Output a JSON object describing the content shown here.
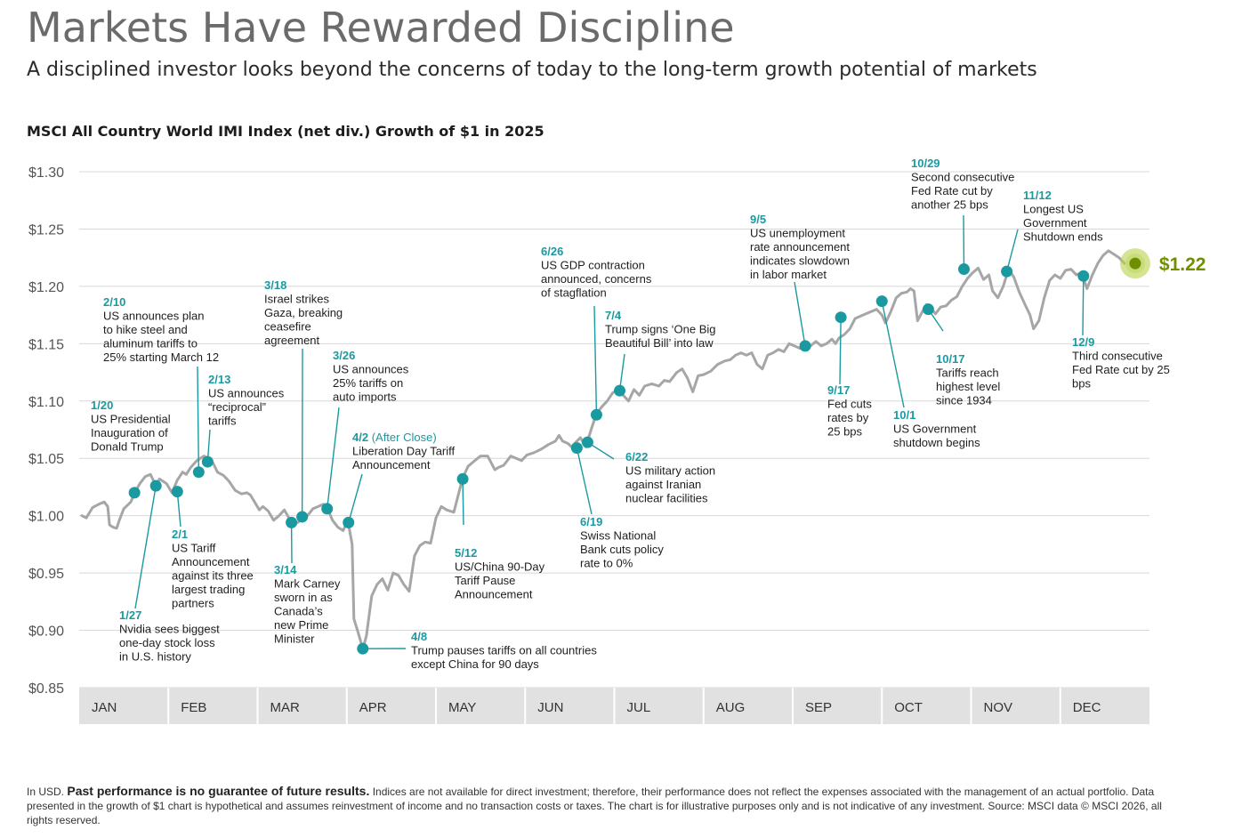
{
  "header": {
    "title": "Markets Have Rewarded Discipline",
    "subtitle": "A disciplined investor looks beyond the concerns of today to the long-term growth potential of markets"
  },
  "chart_data": {
    "type": "line",
    "title": "MSCI All Country World IMI Index (net div.) Growth of $1 in 2025",
    "ylim": [
      0.85,
      1.3
    ],
    "y_ticks": [
      0.85,
      0.9,
      0.95,
      1.0,
      1.05,
      1.1,
      1.15,
      1.2,
      1.25,
      1.3
    ],
    "y_tick_labels": [
      "$0.85",
      "$0.90",
      "$0.95",
      "$1.00",
      "$1.05",
      "$1.10",
      "$1.15",
      "$1.20",
      "$1.25",
      "$1.30"
    ],
    "months": [
      "JAN",
      "FEB",
      "MAR",
      "APR",
      "MAY",
      "JUN",
      "JUL",
      "AUG",
      "SEP",
      "OCT",
      "NOV",
      "DEC"
    ],
    "x_unit": "month (0 = Jan 1, 12 = Dec 31)",
    "series": [
      {
        "name": "Growth of $1",
        "color": "#a6a6a6",
        "points": [
          [
            0.03,
            1.0
          ],
          [
            0.08,
            0.998
          ],
          [
            0.15,
            1.007
          ],
          [
            0.22,
            1.01
          ],
          [
            0.28,
            1.012
          ],
          [
            0.32,
            1.008
          ],
          [
            0.34,
            0.992
          ],
          [
            0.38,
            0.99
          ],
          [
            0.42,
            0.989
          ],
          [
            0.45,
            0.996
          ],
          [
            0.5,
            1.006
          ],
          [
            0.58,
            1.012
          ],
          [
            0.62,
            1.02
          ],
          [
            0.68,
            1.028
          ],
          [
            0.74,
            1.034
          ],
          [
            0.8,
            1.036
          ],
          [
            0.86,
            1.026
          ],
          [
            0.9,
            1.032
          ],
          [
            0.98,
            1.028
          ],
          [
            1.04,
            1.02
          ],
          [
            1.1,
            1.031
          ],
          [
            1.16,
            1.038
          ],
          [
            1.2,
            1.036
          ],
          [
            1.25,
            1.042
          ],
          [
            1.32,
            1.048
          ],
          [
            1.4,
            1.052
          ],
          [
            1.45,
            1.05
          ],
          [
            1.5,
            1.046
          ],
          [
            1.55,
            1.038
          ],
          [
            1.62,
            1.035
          ],
          [
            1.68,
            1.03
          ],
          [
            1.75,
            1.022
          ],
          [
            1.82,
            1.019
          ],
          [
            1.88,
            1.02
          ],
          [
            1.92,
            1.018
          ],
          [
            2.02,
            1.005
          ],
          [
            2.06,
            1.008
          ],
          [
            2.12,
            1.004
          ],
          [
            2.18,
            0.996
          ],
          [
            2.24,
            1.0
          ],
          [
            2.3,
            1.005
          ],
          [
            2.38,
            0.994
          ],
          [
            2.45,
            0.994
          ],
          [
            2.5,
            0.997
          ],
          [
            2.56,
            1.0
          ],
          [
            2.62,
            1.006
          ],
          [
            2.68,
            1.008
          ],
          [
            2.74,
            1.01
          ],
          [
            2.78,
            1.007
          ],
          [
            2.84,
            0.996
          ],
          [
            2.9,
            0.99
          ],
          [
            2.96,
            0.987
          ],
          [
            3.0,
            0.994
          ],
          [
            3.02,
            0.992
          ],
          [
            3.06,
            0.975
          ],
          [
            3.08,
            0.91
          ],
          [
            3.12,
            0.9
          ],
          [
            3.18,
            0.884
          ],
          [
            3.22,
            0.895
          ],
          [
            3.28,
            0.93
          ],
          [
            3.34,
            0.94
          ],
          [
            3.4,
            0.945
          ],
          [
            3.46,
            0.935
          ],
          [
            3.52,
            0.95
          ],
          [
            3.58,
            0.948
          ],
          [
            3.64,
            0.94
          ],
          [
            3.7,
            0.934
          ],
          [
            3.76,
            0.965
          ],
          [
            3.82,
            0.974
          ],
          [
            3.88,
            0.977
          ],
          [
            3.94,
            0.976
          ],
          [
            4.0,
            0.998
          ],
          [
            4.06,
            1.008
          ],
          [
            4.12,
            1.005
          ],
          [
            4.2,
            1.003
          ],
          [
            4.3,
            1.033
          ],
          [
            4.36,
            1.043
          ],
          [
            4.42,
            1.047
          ],
          [
            4.5,
            1.052
          ],
          [
            4.58,
            1.052
          ],
          [
            4.66,
            1.04
          ],
          [
            4.7,
            1.042
          ],
          [
            4.76,
            1.044
          ],
          [
            4.84,
            1.052
          ],
          [
            4.9,
            1.05
          ],
          [
            4.96,
            1.048
          ],
          [
            5.02,
            1.053
          ],
          [
            5.1,
            1.055
          ],
          [
            5.18,
            1.058
          ],
          [
            5.26,
            1.062
          ],
          [
            5.34,
            1.065
          ],
          [
            5.38,
            1.07
          ],
          [
            5.42,
            1.065
          ],
          [
            5.48,
            1.063
          ],
          [
            5.52,
            1.06
          ],
          [
            5.58,
            1.065
          ],
          [
            5.62,
            1.068
          ],
          [
            5.68,
            1.06
          ],
          [
            5.74,
            1.075
          ],
          [
            5.8,
            1.089
          ],
          [
            5.86,
            1.095
          ],
          [
            5.92,
            1.1
          ],
          [
            5.98,
            1.107
          ],
          [
            6.04,
            1.11
          ],
          [
            6.1,
            1.105
          ],
          [
            6.16,
            1.1
          ],
          [
            6.22,
            1.11
          ],
          [
            6.28,
            1.105
          ],
          [
            6.34,
            1.113
          ],
          [
            6.42,
            1.115
          ],
          [
            6.5,
            1.113
          ],
          [
            6.56,
            1.118
          ],
          [
            6.62,
            1.117
          ],
          [
            6.7,
            1.125
          ],
          [
            6.76,
            1.128
          ],
          [
            6.82,
            1.12
          ],
          [
            6.88,
            1.108
          ],
          [
            6.94,
            1.122
          ],
          [
            7.0,
            1.123
          ],
          [
            7.08,
            1.126
          ],
          [
            7.16,
            1.132
          ],
          [
            7.24,
            1.135
          ],
          [
            7.3,
            1.136
          ],
          [
            7.36,
            1.14
          ],
          [
            7.42,
            1.142
          ],
          [
            7.48,
            1.14
          ],
          [
            7.54,
            1.142
          ],
          [
            7.6,
            1.132
          ],
          [
            7.66,
            1.128
          ],
          [
            7.72,
            1.14
          ],
          [
            7.78,
            1.142
          ],
          [
            7.84,
            1.145
          ],
          [
            7.9,
            1.143
          ],
          [
            7.96,
            1.15
          ],
          [
            8.02,
            1.148
          ],
          [
            8.08,
            1.146
          ],
          [
            8.14,
            1.145
          ],
          [
            8.2,
            1.148
          ],
          [
            8.26,
            1.152
          ],
          [
            8.32,
            1.148
          ],
          [
            8.38,
            1.15
          ],
          [
            8.44,
            1.154
          ],
          [
            8.48,
            1.15
          ],
          [
            8.52,
            1.155
          ],
          [
            8.58,
            1.158
          ],
          [
            8.64,
            1.163
          ],
          [
            8.7,
            1.172
          ],
          [
            8.76,
            1.174
          ],
          [
            8.82,
            1.176
          ],
          [
            8.88,
            1.178
          ],
          [
            8.94,
            1.18
          ],
          [
            9.0,
            1.175
          ],
          [
            9.04,
            1.168
          ],
          [
            9.1,
            1.178
          ],
          [
            9.16,
            1.19
          ],
          [
            9.22,
            1.194
          ],
          [
            9.28,
            1.195
          ],
          [
            9.32,
            1.198
          ],
          [
            9.36,
            1.196
          ],
          [
            9.4,
            1.17
          ],
          [
            9.44,
            1.176
          ],
          [
            9.5,
            1.184
          ],
          [
            9.56,
            1.18
          ],
          [
            9.6,
            1.176
          ],
          [
            9.66,
            1.182
          ],
          [
            9.72,
            1.183
          ],
          [
            9.78,
            1.188
          ],
          [
            9.84,
            1.191
          ],
          [
            9.9,
            1.2
          ],
          [
            9.96,
            1.207
          ],
          [
            10.02,
            1.212
          ],
          [
            10.08,
            1.216
          ],
          [
            10.14,
            1.206
          ],
          [
            10.2,
            1.21
          ],
          [
            10.24,
            1.196
          ],
          [
            10.3,
            1.19
          ],
          [
            10.36,
            1.2
          ],
          [
            10.42,
            1.215
          ],
          [
            10.48,
            1.208
          ],
          [
            10.54,
            1.195
          ],
          [
            10.6,
            1.185
          ],
          [
            10.66,
            1.175
          ],
          [
            10.7,
            1.163
          ],
          [
            10.76,
            1.17
          ],
          [
            10.82,
            1.19
          ],
          [
            10.88,
            1.205
          ],
          [
            10.94,
            1.21
          ],
          [
            11.0,
            1.207
          ],
          [
            11.06,
            1.214
          ],
          [
            11.12,
            1.215
          ],
          [
            11.18,
            1.21
          ],
          [
            11.24,
            1.212
          ],
          [
            11.3,
            1.198
          ],
          [
            11.36,
            1.21
          ],
          [
            11.42,
            1.22
          ],
          [
            11.48,
            1.227
          ],
          [
            11.54,
            1.231
          ],
          [
            11.6,
            1.228
          ],
          [
            11.66,
            1.225
          ],
          [
            11.72,
            1.22
          ]
        ]
      }
    ],
    "end_value": 1.22,
    "end_label": "$1.22",
    "annotations": [
      {
        "date": "1/20",
        "text": [
          "US Presidential",
          "Inauguration of",
          "Donald Trump"
        ],
        "x": 0.62,
        "y": 1.02
      },
      {
        "date": "1/27",
        "text": [
          "Nvidia sees biggest",
          "one-day stock loss",
          "in U.S. history"
        ],
        "x": 0.86,
        "y": 1.026
      },
      {
        "date": "2/1",
        "text": [
          "US Tariff",
          "Announcement",
          "against its three",
          "largest trading",
          "partners"
        ],
        "x": 1.1,
        "y": 1.021
      },
      {
        "date": "2/10",
        "text": [
          "US announces plan",
          "to hike steel and",
          "aluminum tariffs to",
          "25% starting March 12"
        ],
        "x": 1.34,
        "y": 1.038
      },
      {
        "date": "2/13",
        "text": [
          "US announces",
          "“reciprocal”",
          "tariffs"
        ],
        "x": 1.44,
        "y": 1.047
      },
      {
        "date": "3/14",
        "text": [
          "Mark Carney",
          "sworn in as",
          "Canada’s",
          "new Prime",
          "Minister"
        ],
        "x": 2.38,
        "y": 0.994
      },
      {
        "date": "3/18",
        "text": [
          "Israel strikes",
          "Gaza, breaking",
          "ceasefire",
          "agreement"
        ],
        "x": 2.5,
        "y": 0.999
      },
      {
        "date": "3/26",
        "text": [
          "US announces",
          "25% tariffs on",
          "auto imports"
        ],
        "x": 2.78,
        "y": 1.006
      },
      {
        "date": "4/2",
        "date_note": "(After Close)",
        "text": [
          "Liberation Day Tariff",
          "Announcement"
        ],
        "x": 3.02,
        "y": 0.994
      },
      {
        "date": "4/8",
        "text": [
          "Trump pauses tariffs on all countries",
          "except China for 90 days"
        ],
        "x": 3.18,
        "y": 0.884
      },
      {
        "date": "5/12",
        "text": [
          "US/China 90-Day",
          "Tariff Pause",
          "Announcement"
        ],
        "x": 4.3,
        "y": 1.032
      },
      {
        "date": "6/19",
        "text": [
          "Swiss National",
          "Bank cuts policy",
          "rate to 0%"
        ],
        "x": 5.58,
        "y": 1.059
      },
      {
        "date": "6/22",
        "text": [
          "US military action",
          "against Iranian",
          "nuclear facilities"
        ],
        "x": 5.7,
        "y": 1.064
      },
      {
        "date": "6/26",
        "text": [
          "GDP contraction",
          "announced, concerns",
          "of stagflation"
        ],
        "text_first_prefix": "US ",
        "x": 5.8,
        "y": 1.088
      },
      {
        "date": "7/4",
        "text": [
          "Trump signs ‘One Big",
          "Beautiful Bill’ into law"
        ],
        "x": 6.06,
        "y": 1.109
      },
      {
        "date": "9/5",
        "text": [
          "US unemployment",
          "rate announcement",
          "indicates slowdown",
          "in labor market"
        ],
        "x": 8.14,
        "y": 1.148
      },
      {
        "date": "9/17",
        "text": [
          "Fed cuts",
          "rates by",
          "25 bps"
        ],
        "x": 8.54,
        "y": 1.173
      },
      {
        "date": "10/1",
        "text": [
          "US Government",
          "shutdown begins"
        ],
        "x": 9.0,
        "y": 1.187
      },
      {
        "date": "10/17",
        "text": [
          "Tariffs reach",
          "highest level",
          "since 1934"
        ],
        "x": 9.52,
        "y": 1.18
      },
      {
        "date": "10/29",
        "text": [
          "Second consecutive",
          "Fed Rate cut by",
          "another 25 bps"
        ],
        "x": 9.92,
        "y": 1.215
      },
      {
        "date": "11/12",
        "text": [
          "Longest US",
          "Government",
          "Shutdown ends"
        ],
        "x": 10.4,
        "y": 1.213
      },
      {
        "date": "12/9",
        "text": [
          "Third consecutive",
          "Fed Rate cut by 25",
          "bps"
        ],
        "x": 11.26,
        "y": 1.209
      }
    ],
    "colors": {
      "line": "#a6a6a6",
      "marker": "#1a9aa0",
      "date": "#1a9aa0",
      "end_marker": "#6f8f00",
      "end_glow": "#b8d24a",
      "axis_band": "#e1e1e1",
      "grid": "#d8d8d8"
    }
  },
  "footnote": {
    "prefix": "In USD.",
    "bold": "Past performance is no guarantee of future results.",
    "rest": "Indices are not available for direct investment; therefore, their performance does not reflect the expenses associated with the management of an actual portfolio. Data presented in the growth of $1 chart is hypothetical and assumes reinvestment of income and no transaction costs or taxes. The chart is for illustrative purposes only and is not indicative of any investment. Source: MSCI data © MSCI 2026, all rights reserved."
  }
}
